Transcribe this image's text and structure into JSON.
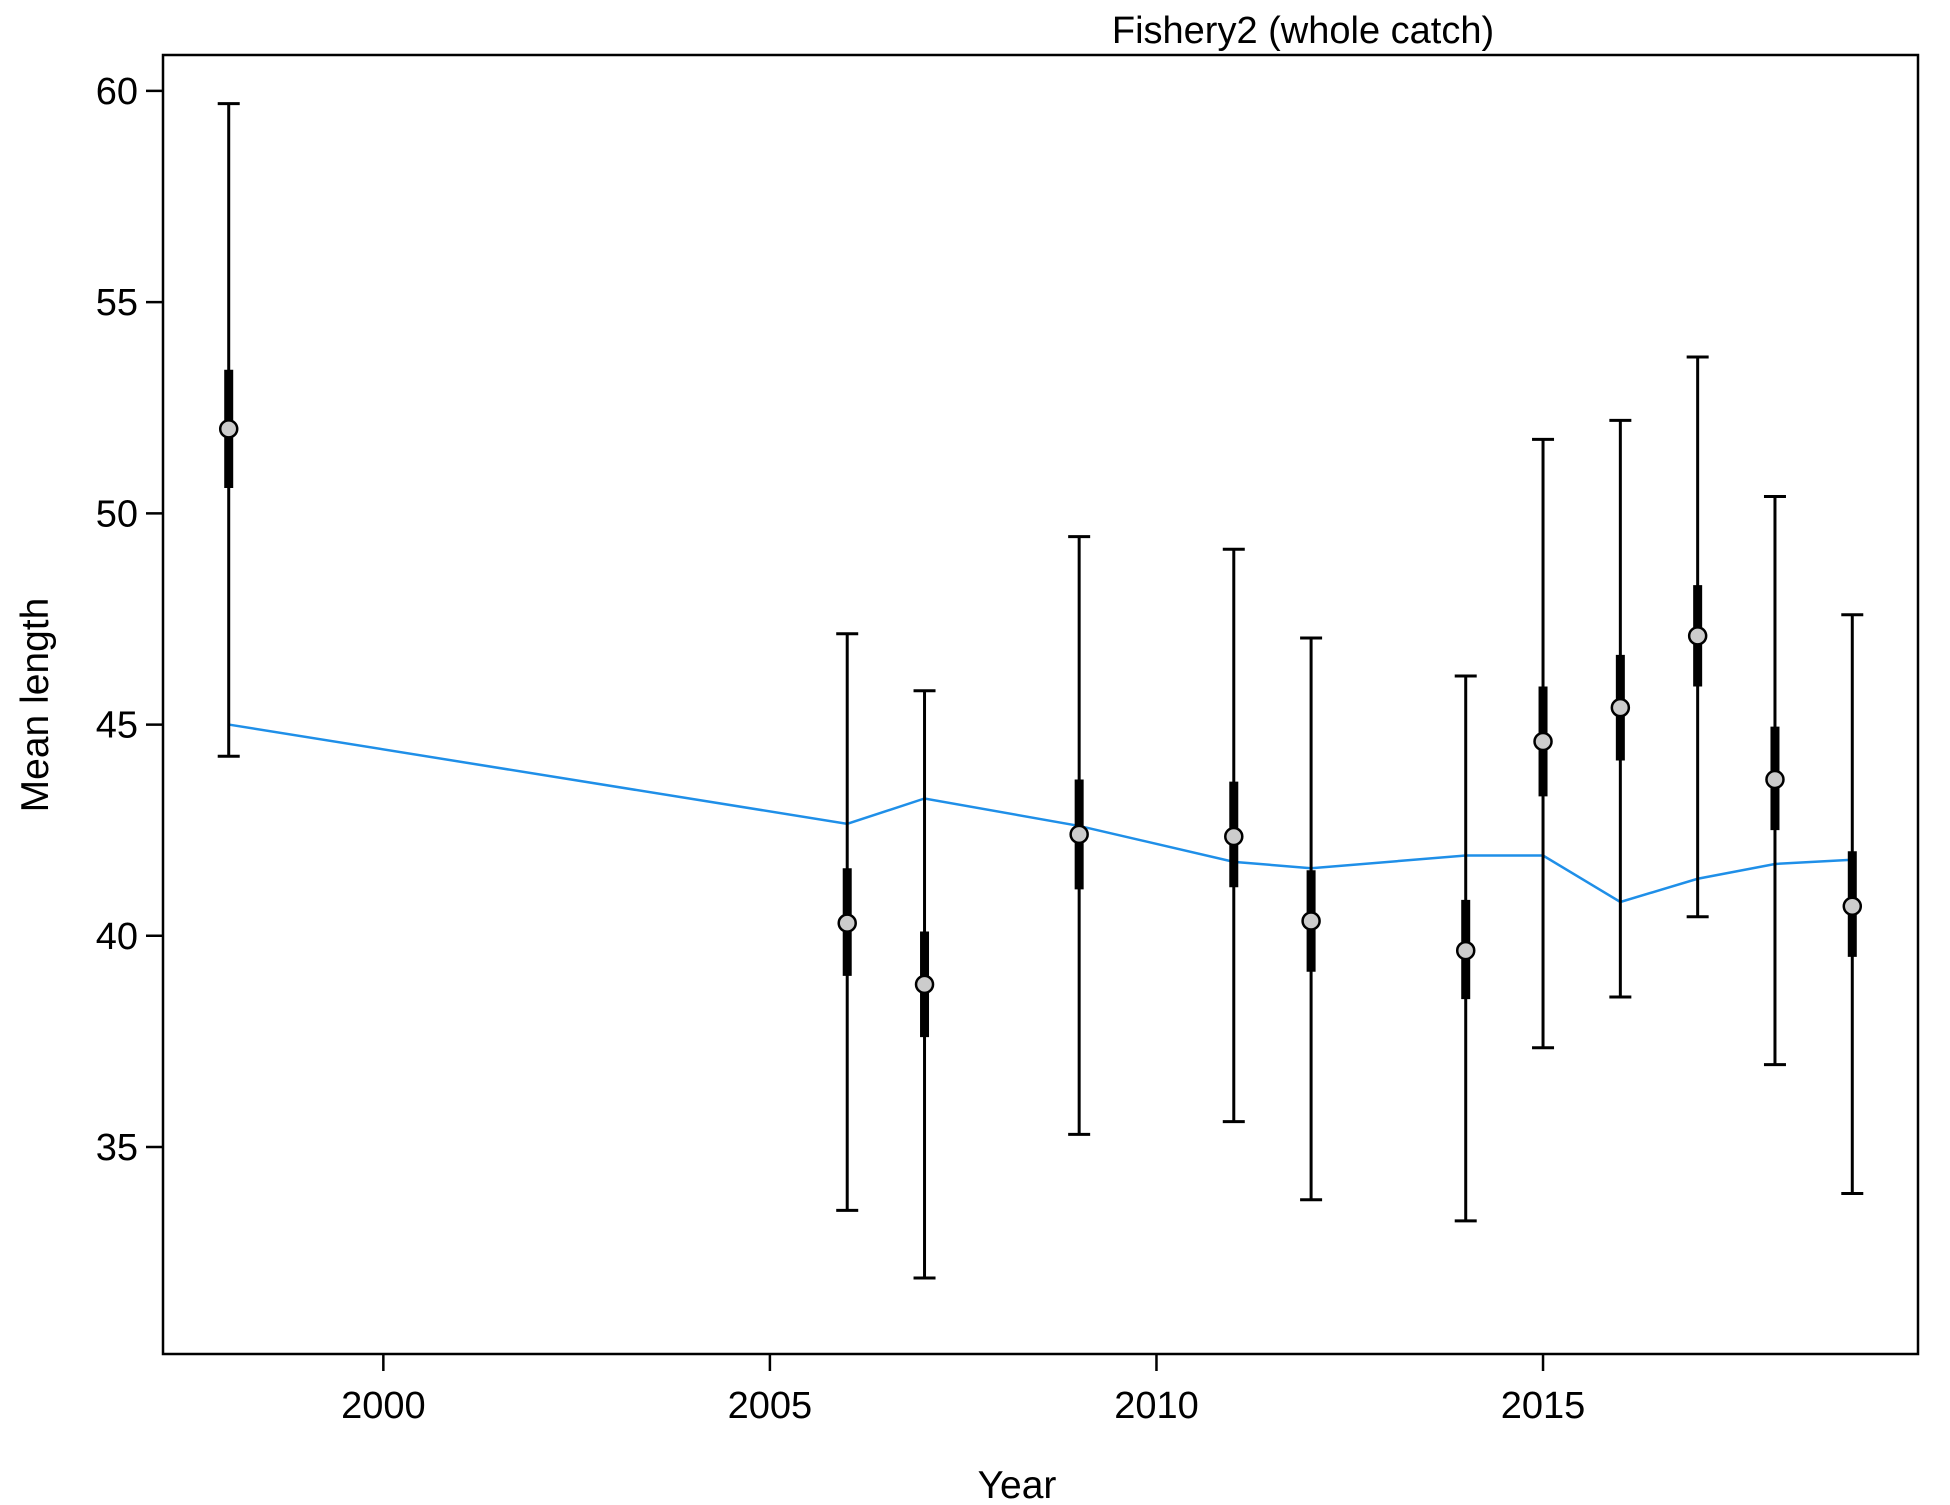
{
  "chart_data": {
    "type": "scatter",
    "title": "Fishery2 (whole catch)",
    "xlabel": "Year",
    "ylabel": "Mean length",
    "xlim": [
      1997.15,
      2019.85
    ],
    "ylim": [
      30.1,
      60.85
    ],
    "x_ticks": [
      2000,
      2005,
      2010,
      2015
    ],
    "y_ticks": [
      35,
      40,
      45,
      50,
      55,
      60
    ],
    "grid": false,
    "legend": "none",
    "colors": {
      "expected_line": "#1f8fe8",
      "observed_point_fill": "#cccccc",
      "error_bar": "#000000"
    },
    "series": [
      {
        "kind": "observed_with_intervals",
        "x": [
          1998,
          2006,
          2007,
          2009,
          2011,
          2012,
          2014,
          2015,
          2016,
          2017,
          2018,
          2019
        ],
        "y": [
          52.0,
          40.3,
          38.85,
          42.4,
          42.35,
          40.35,
          39.65,
          44.6,
          45.4,
          47.1,
          43.7,
          40.7
        ],
        "inner_low": [
          50.6,
          39.05,
          37.6,
          41.1,
          41.15,
          39.15,
          38.5,
          43.3,
          44.15,
          45.9,
          42.5,
          39.5
        ],
        "inner_high": [
          53.4,
          41.6,
          40.1,
          43.7,
          43.65,
          41.55,
          40.85,
          45.9,
          46.65,
          48.3,
          44.95,
          42.0
        ],
        "outer_low": [
          44.25,
          33.5,
          31.9,
          35.3,
          35.6,
          33.75,
          33.25,
          37.35,
          38.55,
          40.45,
          36.95,
          33.9
        ],
        "outer_high": [
          59.7,
          47.15,
          45.8,
          49.45,
          49.15,
          47.05,
          46.15,
          51.75,
          52.2,
          53.7,
          50.4,
          47.6
        ]
      },
      {
        "kind": "expected_line",
        "x": [
          1998,
          2006,
          2007,
          2009,
          2011,
          2012,
          2014,
          2015,
          2016,
          2017,
          2018,
          2019
        ],
        "y": [
          45.0,
          42.65,
          43.25,
          42.6,
          41.75,
          41.6,
          41.9,
          41.9,
          40.8,
          41.35,
          41.7,
          41.8
        ]
      }
    ]
  }
}
